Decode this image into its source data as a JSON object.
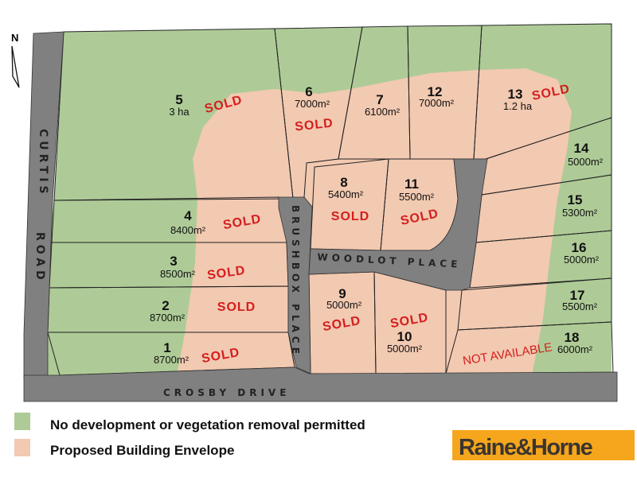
{
  "compass": {
    "label": "N",
    "icon": "north-arrow-icon"
  },
  "colors": {
    "vegetation": "#aecb97",
    "envelope": "#f2c9b1",
    "road": "#808080",
    "sold": "#d41e1e",
    "logo_bg": "#f5a61c"
  },
  "roads": {
    "curtis": "CURTIS",
    "road": "ROAD",
    "brushbox": "BRUSHBOX PLACE",
    "woodlot": "WOODLOT PLACE",
    "crosby": "CROSBY DRIVE"
  },
  "lots": {
    "l1": {
      "number": "1",
      "area": "8700m²",
      "status": "SOLD"
    },
    "l2": {
      "number": "2",
      "area": "8700m²",
      "status": "SOLD"
    },
    "l3": {
      "number": "3",
      "area": "8500m²",
      "status": "SOLD"
    },
    "l4": {
      "number": "4",
      "area": "8400m²",
      "status": "SOLD"
    },
    "l5": {
      "number": "5",
      "area": "3 ha",
      "status": "SOLD"
    },
    "l6": {
      "number": "6",
      "area": "7000m²",
      "status": "SOLD"
    },
    "l7": {
      "number": "7",
      "area": "6100m²"
    },
    "l8": {
      "number": "8",
      "area": "5400m²",
      "status": "SOLD"
    },
    "l9": {
      "number": "9",
      "area": "5000m²",
      "status": "SOLD"
    },
    "l10": {
      "number": "10",
      "area": "5000m²",
      "status": "SOLD"
    },
    "l11": {
      "number": "11",
      "area": "5500m²",
      "status": "SOLD"
    },
    "l12": {
      "number": "12",
      "area": "7000m²"
    },
    "l13": {
      "number": "13",
      "area": "1.2 ha",
      "status": "SOLD"
    },
    "l14": {
      "number": "14",
      "area": "5000m²"
    },
    "l15": {
      "number": "15",
      "area": "5300m²"
    },
    "l16": {
      "number": "16",
      "area": "5000m²"
    },
    "l17": {
      "number": "17",
      "area": "5500m²"
    },
    "l18": {
      "number": "18",
      "area": "6000m²",
      "status": "NOT AVAILABLE"
    }
  },
  "legend": [
    {
      "label": "No development or vegetation removal permitted"
    },
    {
      "label": "Proposed Building Envelope"
    }
  ],
  "logo": {
    "text": "Raine&Horne"
  }
}
